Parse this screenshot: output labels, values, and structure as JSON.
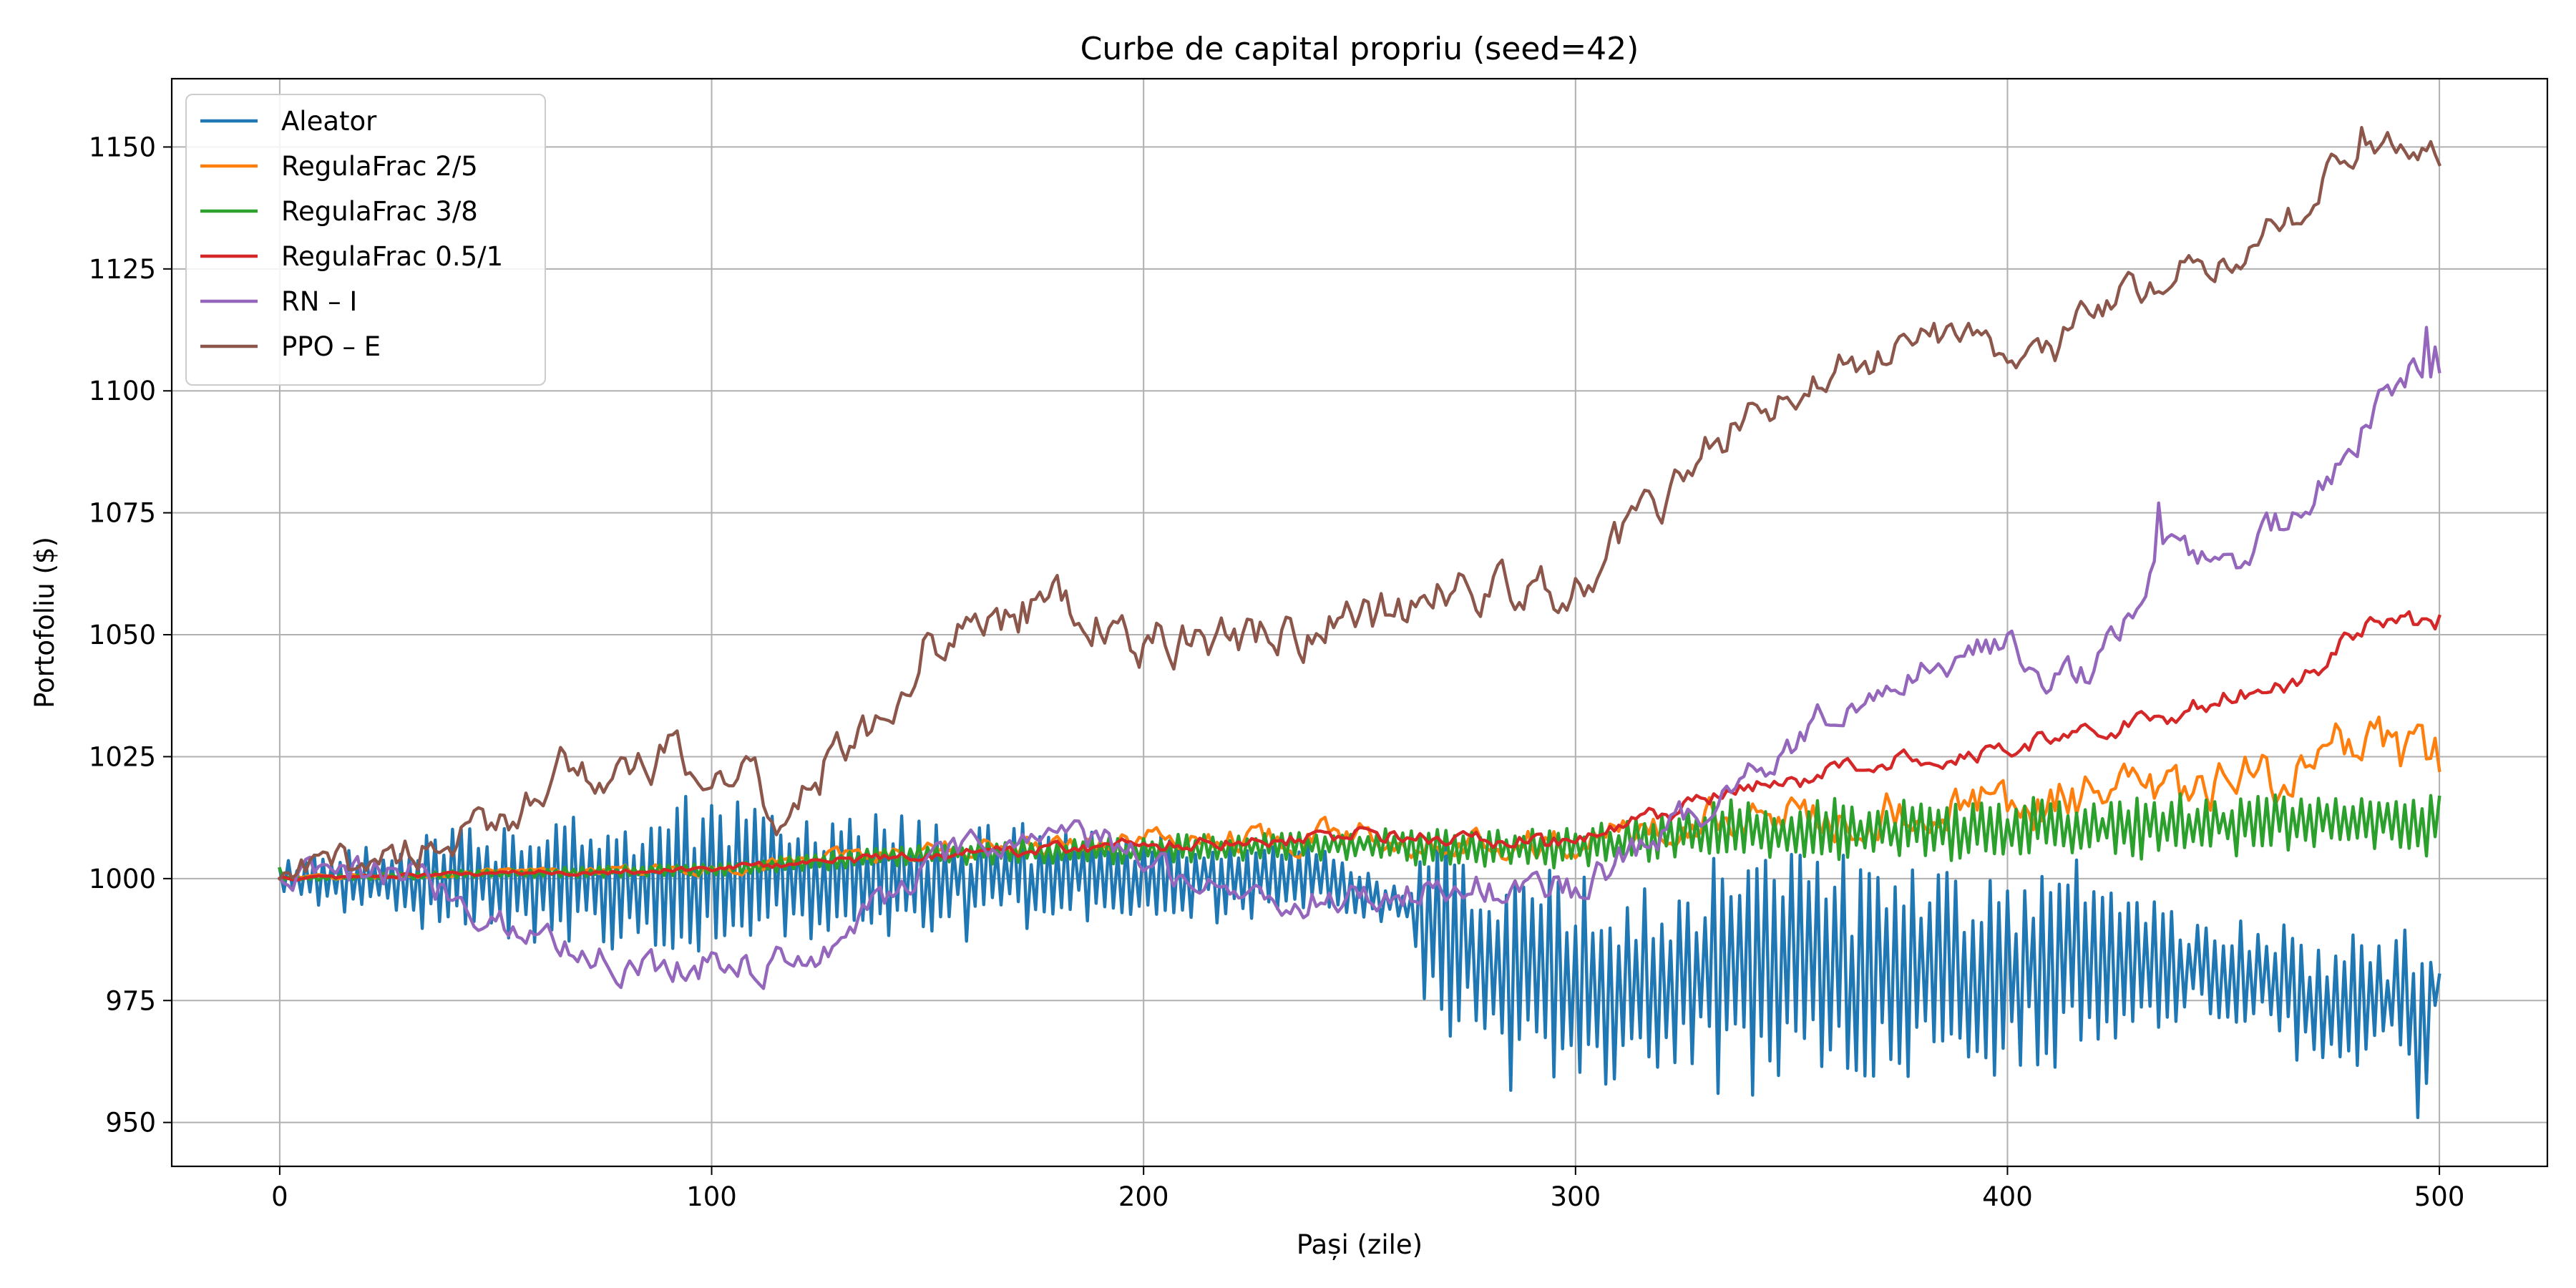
{
  "chart_data": {
    "type": "line",
    "title": "Curbe de capital propriu (seed=42)",
    "xlabel": "Pași (zile)",
    "ylabel": "Portofoliu ($)",
    "xlim": [
      -25,
      525
    ],
    "ylim": [
      941,
      1164
    ],
    "x_ticks": [
      0,
      100,
      200,
      300,
      400,
      500
    ],
    "y_ticks": [
      950,
      975,
      1000,
      1025,
      1050,
      1075,
      1100,
      1125,
      1150
    ],
    "grid": true,
    "legend_position": "top-left",
    "series": [
      {
        "name": "Aleator",
        "color": "#1f77b4",
        "shape": "oscillating",
        "baseline": [
          [
            0,
            1000
          ],
          [
            100,
            1000
          ],
          [
            200,
            1000
          ],
          [
            240,
            1000
          ],
          [
            265,
            993
          ],
          [
            280,
            980
          ],
          [
            300,
            978
          ],
          [
            340,
            981
          ],
          [
            400,
            982
          ],
          [
            440,
            982
          ],
          [
            470,
            976
          ],
          [
            500,
            973
          ]
        ],
        "amplitude": [
          [
            0,
            4
          ],
          [
            50,
            12
          ],
          [
            90,
            16
          ],
          [
            130,
            13
          ],
          [
            200,
            10
          ],
          [
            240,
            7
          ],
          [
            262,
            4
          ],
          [
            265,
            20
          ],
          [
            300,
            22
          ],
          [
            350,
            24
          ],
          [
            420,
            20
          ],
          [
            440,
            10
          ],
          [
            500,
            16
          ]
        ],
        "extra_points": [
          [
            495,
            951
          ],
          [
            497,
            958
          ],
          [
            499,
            974
          ]
        ]
      },
      {
        "name": "RegulaFrac 2/5",
        "color": "#ff7f0e",
        "shape": "noisy",
        "baseline": [
          [
            0,
            1000
          ],
          [
            100,
            1002
          ],
          [
            150,
            1006
          ],
          [
            200,
            1008
          ],
          [
            250,
            1009
          ],
          [
            300,
            1007
          ],
          [
            330,
            1012
          ],
          [
            400,
            1015
          ],
          [
            450,
            1018
          ],
          [
            480,
            1026
          ],
          [
            500,
            1024
          ]
        ],
        "amplitude": [
          [
            0,
            0.4
          ],
          [
            100,
            1
          ],
          [
            200,
            2
          ],
          [
            300,
            3
          ],
          [
            350,
            4
          ],
          [
            450,
            5
          ],
          [
            500,
            5
          ]
        ]
      },
      {
        "name": "RegulaFrac 3/8",
        "color": "#2ca02c",
        "shape": "oscillating",
        "baseline": [
          [
            0,
            1000
          ],
          [
            100,
            1002
          ],
          [
            150,
            1005
          ],
          [
            200,
            1006
          ],
          [
            250,
            1007
          ],
          [
            300,
            1006
          ],
          [
            330,
            1010
          ],
          [
            400,
            1010
          ],
          [
            450,
            1011
          ],
          [
            480,
            1012
          ],
          [
            500,
            1011
          ]
        ],
        "amplitude": [
          [
            0,
            0.4
          ],
          [
            100,
            1.5
          ],
          [
            200,
            3
          ],
          [
            300,
            4
          ],
          [
            350,
            6
          ],
          [
            450,
            6
          ],
          [
            500,
            6
          ]
        ]
      },
      {
        "name": "RegulaFrac 0.5/1",
        "color": "#d62728",
        "shape": "noisy",
        "baseline": [
          [
            0,
            1000
          ],
          [
            100,
            1002
          ],
          [
            150,
            1005
          ],
          [
            200,
            1007
          ],
          [
            250,
            1009
          ],
          [
            300,
            1007
          ],
          [
            330,
            1016
          ],
          [
            370,
            1024
          ],
          [
            400,
            1027
          ],
          [
            440,
            1034
          ],
          [
            470,
            1042
          ],
          [
            485,
            1054
          ],
          [
            500,
            1053
          ]
        ],
        "amplitude": [
          [
            0,
            0.3
          ],
          [
            100,
            0.6
          ],
          [
            200,
            1.2
          ],
          [
            300,
            1.5
          ],
          [
            400,
            1.7
          ],
          [
            500,
            2
          ]
        ]
      },
      {
        "name": "RN – I",
        "color": "#9467bd",
        "shape": "noisy",
        "baseline": [
          [
            0,
            1000
          ],
          [
            30,
            1001
          ],
          [
            55,
            990
          ],
          [
            80,
            982
          ],
          [
            100,
            983
          ],
          [
            120,
            982
          ],
          [
            150,
            1003
          ],
          [
            180,
            1010
          ],
          [
            210,
            1001
          ],
          [
            230,
            995
          ],
          [
            250,
            996
          ],
          [
            270,
            998
          ],
          [
            300,
            998
          ],
          [
            330,
            1015
          ],
          [
            360,
            1035
          ],
          [
            390,
            1046
          ],
          [
            400,
            1049
          ],
          [
            410,
            1042
          ],
          [
            420,
            1042
          ],
          [
            440,
            1070
          ],
          [
            450,
            1062
          ],
          [
            470,
            1078
          ],
          [
            480,
            1088
          ],
          [
            490,
            1103
          ],
          [
            500,
            1108
          ]
        ],
        "amplitude": [
          [
            0,
            3
          ],
          [
            100,
            3
          ],
          [
            200,
            3
          ],
          [
            300,
            3
          ],
          [
            400,
            3
          ],
          [
            500,
            3
          ]
        ],
        "extra_points": [
          [
            435,
            1077
          ],
          [
            497,
            1113
          ],
          [
            499,
            1109
          ]
        ]
      },
      {
        "name": "PPO – E",
        "color": "#8c564b",
        "shape": "noisy",
        "baseline": [
          [
            0,
            1000
          ],
          [
            25,
            1005
          ],
          [
            50,
            1010
          ],
          [
            65,
            1024
          ],
          [
            80,
            1020
          ],
          [
            90,
            1025
          ],
          [
            100,
            1020
          ],
          [
            110,
            1022
          ],
          [
            115,
            1013
          ],
          [
            140,
            1035
          ],
          [
            150,
            1048
          ],
          [
            175,
            1056
          ],
          [
            185,
            1056
          ],
          [
            195,
            1048
          ],
          [
            230,
            1050
          ],
          [
            250,
            1052
          ],
          [
            270,
            1060
          ],
          [
            290,
            1058
          ],
          [
            300,
            1060
          ],
          [
            320,
            1078
          ],
          [
            340,
            1095
          ],
          [
            350,
            1097
          ],
          [
            360,
            1104
          ],
          [
            370,
            1108
          ],
          [
            380,
            1112
          ],
          [
            390,
            1112
          ],
          [
            400,
            1106
          ],
          [
            410,
            1107
          ],
          [
            420,
            1117
          ],
          [
            440,
            1125
          ],
          [
            460,
            1132
          ],
          [
            470,
            1138
          ],
          [
            480,
            1150
          ],
          [
            485,
            1150
          ],
          [
            500,
            1148
          ]
        ],
        "amplitude": [
          [
            0,
            3
          ],
          [
            100,
            4
          ],
          [
            200,
            4
          ],
          [
            300,
            4
          ],
          [
            400,
            3
          ],
          [
            500,
            3
          ]
        ],
        "extra_points": [
          [
            482,
            1154
          ]
        ]
      }
    ]
  }
}
